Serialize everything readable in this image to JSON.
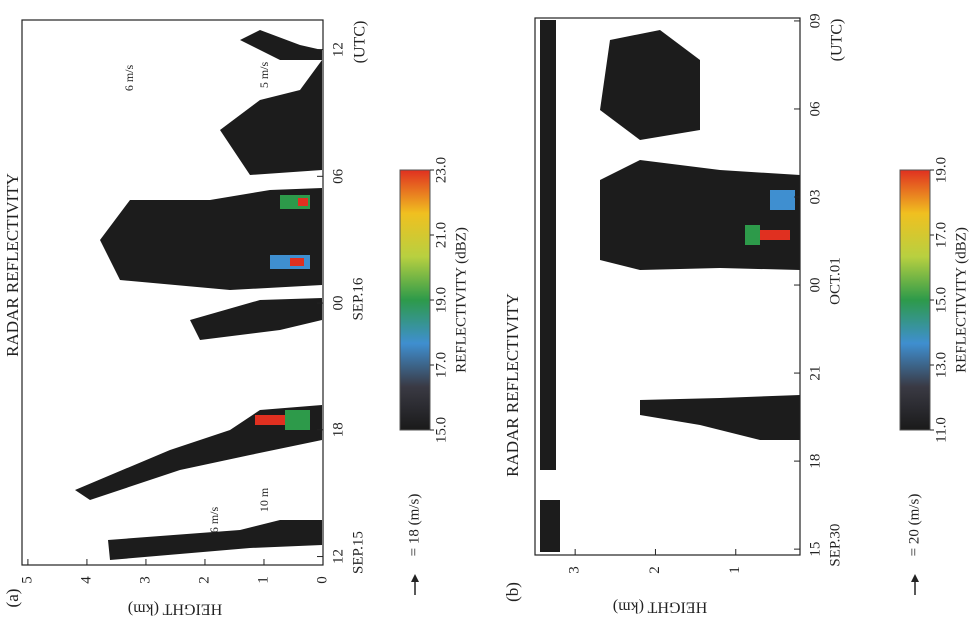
{
  "chart_data": [
    {
      "type": "heatmap",
      "panel": "(a)",
      "title": "RADAR REFLECTIVITY",
      "x_label": "(UTC)",
      "y_label": "HEIGHT (km)",
      "xlim": [
        11.6,
        37.4
      ],
      "xticks": [
        12,
        18,
        {
          "value": 24,
          "label": "00"
        },
        {
          "value": 30,
          "label": "06"
        },
        {
          "value": 36,
          "label": "12"
        }
      ],
      "date_labels": [
        {
          "value": 12,
          "label": "SEP.15"
        },
        {
          "value": 24,
          "label": "SEP.16"
        }
      ],
      "ylim": [
        0,
        5.1
      ],
      "yticks": [
        0,
        1,
        2,
        3,
        4,
        5
      ],
      "annotations": [
        "6 m/s",
        "10 m",
        "6 m/s",
        "5 m/s"
      ],
      "wind_legend": "= 18 (m/s)",
      "colorbar": {
        "label": "REFLECTIVITY (dBZ)",
        "lim": [
          15,
          23
        ],
        "ticks": [
          {
            "value": 15,
            "label": "15.0"
          },
          {
            "value": 17,
            "label": "17.0"
          },
          {
            "value": 19,
            "label": "19.0"
          },
          {
            "value": 21,
            "label": "21.0"
          },
          {
            "value": 23,
            "label": "23.0"
          }
        ],
        "colors": [
          "#1a1a1a",
          "#3a3a44",
          "#3f8fd0",
          "#2d9a4a",
          "#b8d040",
          "#f0c020",
          "#e03020"
        ]
      }
    },
    {
      "type": "heatmap",
      "panel": "(b)",
      "title": "RADAR REFLECTIVITY",
      "x_label": "(UTC)",
      "y_label": "HEIGHT (km)",
      "xlim": [
        14.8,
        33.1
      ],
      "xticks": [
        15,
        18,
        21,
        {
          "value": 24,
          "label": "00"
        },
        {
          "value": 27,
          "label": "03"
        },
        {
          "value": 30,
          "label": "06"
        },
        {
          "value": 33,
          "label": "09"
        }
      ],
      "date_labels": [
        {
          "value": 15,
          "label": "SEP.30"
        },
        {
          "value": 24,
          "label": "OCT.01"
        }
      ],
      "ylim": [
        0.2,
        3.5
      ],
      "yticks": [
        1,
        2,
        3
      ],
      "annotations": [],
      "wind_legend": "= 20 (m/s)",
      "colorbar": {
        "label": "REFLECTIVITY (dBZ)",
        "lim": [
          11,
          19
        ],
        "ticks": [
          {
            "value": 11,
            "label": "11.0"
          },
          {
            "value": 13,
            "label": "13.0"
          },
          {
            "value": 15,
            "label": "15.0"
          },
          {
            "value": 17,
            "label": "17.0"
          },
          {
            "value": 19,
            "label": "19.0"
          }
        ],
        "colors": [
          "#1a1a1a",
          "#3a3a44",
          "#3f8fd0",
          "#2d9a4a",
          "#b8d040",
          "#f0c020",
          "#e03020"
        ]
      }
    }
  ]
}
